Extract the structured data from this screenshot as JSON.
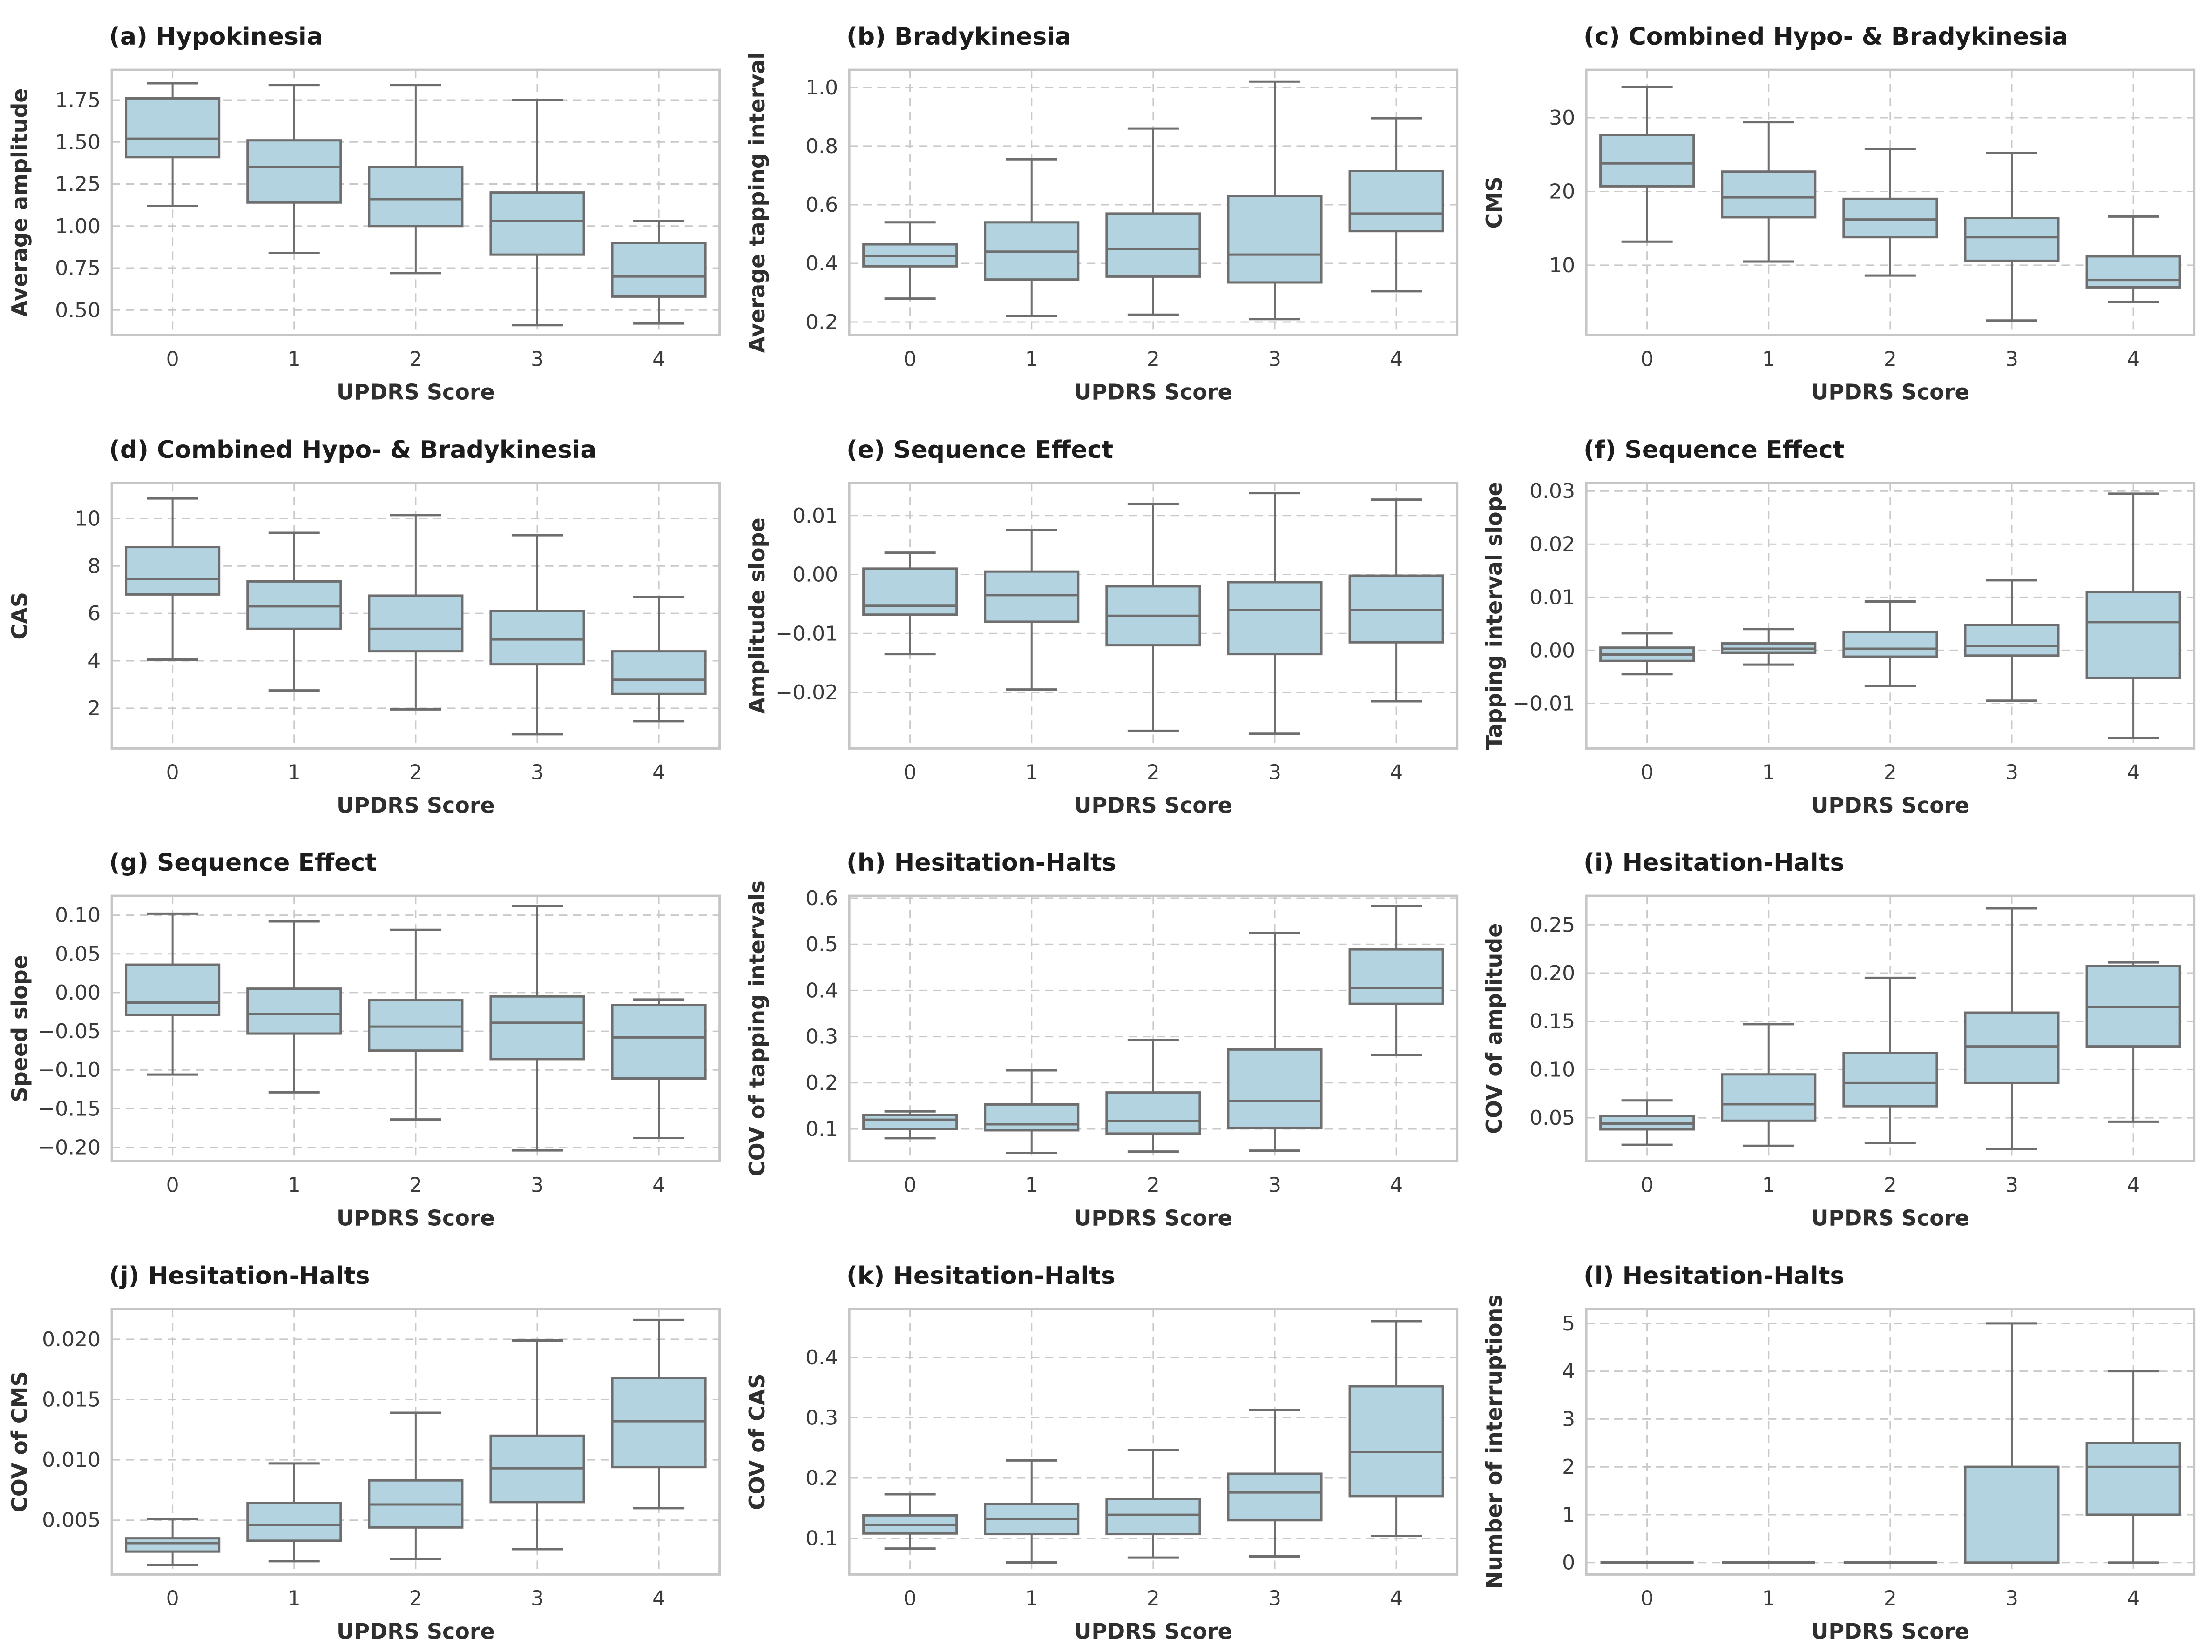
{
  "figure": {
    "background": "#ffffff",
    "shared_xlabel": "UPDRS Score",
    "categories": [
      "0",
      "1",
      "2",
      "3",
      "4"
    ],
    "style": {
      "box_fill": "#b4d3e0",
      "box_edge": "#6e6e6e",
      "grid_color": "#c9c9c9",
      "frame_color": "#c6c6c6",
      "tick_text_color": "#3b3b3b",
      "label_text_color": "#2f2f2f",
      "title_text_color": "#1c1c1c"
    }
  },
  "chart_data": [
    {
      "type": "box",
      "panel_label": "(a)",
      "title": "(a) Hypokinesia",
      "ylabel": "Average amplitude",
      "xlabel": "UPDRS Score",
      "categories": [
        "0",
        "1",
        "2",
        "3",
        "4"
      ],
      "ylim": [
        0.35,
        1.93
      ],
      "ytick_values": [
        0.5,
        0.75,
        1.0,
        1.25,
        1.5,
        1.75
      ],
      "ytick_labels": [
        "0.50",
        "0.75",
        "1.00",
        "1.25",
        "1.50",
        "1.75"
      ],
      "boxes": [
        {
          "whislo": 1.12,
          "q1": 1.41,
          "med": 1.52,
          "q3": 1.76,
          "whishi": 1.85
        },
        {
          "whislo": 0.84,
          "q1": 1.14,
          "med": 1.35,
          "q3": 1.51,
          "whishi": 1.84
        },
        {
          "whislo": 0.72,
          "q1": 1.0,
          "med": 1.16,
          "q3": 1.35,
          "whishi": 1.84
        },
        {
          "whislo": 0.41,
          "q1": 0.83,
          "med": 1.03,
          "q3": 1.2,
          "whishi": 1.75
        },
        {
          "whislo": 0.42,
          "q1": 0.58,
          "med": 0.7,
          "q3": 0.9,
          "whishi": 1.03
        }
      ]
    },
    {
      "type": "box",
      "panel_label": "(b)",
      "title": "(b) Bradykinesia",
      "ylabel": "Average tapping interval",
      "xlabel": "UPDRS Score",
      "categories": [
        "0",
        "1",
        "2",
        "3",
        "4"
      ],
      "ylim": [
        0.155,
        1.06
      ],
      "ytick_values": [
        0.2,
        0.4,
        0.6,
        0.8,
        1.0
      ],
      "ytick_labels": [
        "0.2",
        "0.4",
        "0.6",
        "0.8",
        "1.0"
      ],
      "boxes": [
        {
          "whislo": 0.28,
          "q1": 0.39,
          "med": 0.425,
          "q3": 0.465,
          "whishi": 0.54
        },
        {
          "whislo": 0.22,
          "q1": 0.345,
          "med": 0.44,
          "q3": 0.54,
          "whishi": 0.755
        },
        {
          "whislo": 0.225,
          "q1": 0.355,
          "med": 0.45,
          "q3": 0.57,
          "whishi": 0.86
        },
        {
          "whislo": 0.21,
          "q1": 0.335,
          "med": 0.43,
          "q3": 0.63,
          "whishi": 1.02
        },
        {
          "whislo": 0.305,
          "q1": 0.51,
          "med": 0.57,
          "q3": 0.715,
          "whishi": 0.895
        }
      ]
    },
    {
      "type": "box",
      "panel_label": "(c)",
      "title": "(c) Combined Hypo- & Bradykinesia",
      "ylabel": "CMS",
      "xlabel": "UPDRS Score",
      "categories": [
        "0",
        "1",
        "2",
        "3",
        "4"
      ],
      "ylim": [
        0.5,
        36.5
      ],
      "ytick_values": [
        10,
        20,
        30
      ],
      "ytick_labels": [
        "10",
        "20",
        "30"
      ],
      "boxes": [
        {
          "whislo": 13.2,
          "q1": 20.7,
          "med": 23.8,
          "q3": 27.7,
          "whishi": 34.2
        },
        {
          "whislo": 10.5,
          "q1": 16.5,
          "med": 19.2,
          "q3": 22.7,
          "whishi": 29.4
        },
        {
          "whislo": 8.6,
          "q1": 13.8,
          "med": 16.2,
          "q3": 19.0,
          "whishi": 25.8
        },
        {
          "whislo": 2.5,
          "q1": 10.6,
          "med": 13.8,
          "q3": 16.4,
          "whishi": 25.2
        },
        {
          "whislo": 5.0,
          "q1": 7.0,
          "med": 8.0,
          "q3": 11.2,
          "whishi": 16.6
        }
      ]
    },
    {
      "type": "box",
      "panel_label": "(d)",
      "title": "(d) Combined Hypo- & Bradykinesia",
      "ylabel": "CAS",
      "xlabel": "UPDRS Score",
      "categories": [
        "0",
        "1",
        "2",
        "3",
        "4"
      ],
      "ylim": [
        0.3,
        11.5
      ],
      "ytick_values": [
        2,
        4,
        6,
        8,
        10
      ],
      "ytick_labels": [
        "2",
        "4",
        "6",
        "8",
        "10"
      ],
      "boxes": [
        {
          "whislo": 4.05,
          "q1": 6.8,
          "med": 7.45,
          "q3": 8.8,
          "whishi": 10.85
        },
        {
          "whislo": 2.75,
          "q1": 5.35,
          "med": 6.3,
          "q3": 7.35,
          "whishi": 9.4
        },
        {
          "whislo": 1.95,
          "q1": 4.4,
          "med": 5.35,
          "q3": 6.75,
          "whishi": 10.15
        },
        {
          "whislo": 0.9,
          "q1": 3.85,
          "med": 4.9,
          "q3": 6.1,
          "whishi": 9.3
        },
        {
          "whislo": 1.45,
          "q1": 2.6,
          "med": 3.2,
          "q3": 4.4,
          "whishi": 6.7
        }
      ]
    },
    {
      "type": "box",
      "panel_label": "(e)",
      "title": "(e) Sequence Effect",
      "ylabel": "Amplitude slope",
      "xlabel": "UPDRS Score",
      "categories": [
        "0",
        "1",
        "2",
        "3",
        "4"
      ],
      "ylim": [
        -0.0295,
        0.0155
      ],
      "ytick_values": [
        -0.02,
        -0.01,
        0.0,
        0.01
      ],
      "ytick_labels": [
        "−0.02",
        "−0.01",
        "0.00",
        "0.01"
      ],
      "boxes": [
        {
          "whislo": -0.0135,
          "q1": -0.0068,
          "med": -0.0053,
          "q3": 0.001,
          "whishi": 0.0037
        },
        {
          "whislo": -0.0195,
          "q1": -0.008,
          "med": -0.0035,
          "q3": 0.0005,
          "whishi": 0.0075
        },
        {
          "whislo": -0.0265,
          "q1": -0.012,
          "med": -0.007,
          "q3": -0.002,
          "whishi": 0.012
        },
        {
          "whislo": -0.027,
          "q1": -0.0135,
          "med": -0.006,
          "q3": -0.0013,
          "whishi": 0.0138
        },
        {
          "whislo": -0.0215,
          "q1": -0.0115,
          "med": -0.006,
          "q3": -0.0002,
          "whishi": 0.0127
        }
      ]
    },
    {
      "type": "box",
      "panel_label": "(f)",
      "title": "(f) Sequence Effect",
      "ylabel": "Tapping interval slope",
      "xlabel": "UPDRS Score",
      "categories": [
        "0",
        "1",
        "2",
        "3",
        "4"
      ],
      "ylim": [
        -0.0185,
        0.0315
      ],
      "ytick_values": [
        -0.01,
        0.0,
        0.01,
        0.02,
        0.03
      ],
      "ytick_labels": [
        "−0.01",
        "0.00",
        "0.01",
        "0.02",
        "0.03"
      ],
      "boxes": [
        {
          "whislo": -0.0045,
          "q1": -0.002,
          "med": -0.0008,
          "q3": 0.0005,
          "whishi": 0.0032
        },
        {
          "whislo": -0.0027,
          "q1": -0.0005,
          "med": 0.0003,
          "q3": 0.0013,
          "whishi": 0.004
        },
        {
          "whislo": -0.0067,
          "q1": -0.0012,
          "med": 0.0003,
          "q3": 0.0035,
          "whishi": 0.0092
        },
        {
          "whislo": -0.0095,
          "q1": -0.001,
          "med": 0.0008,
          "q3": 0.0048,
          "whishi": 0.0132
        },
        {
          "whislo": -0.0165,
          "q1": -0.0052,
          "med": 0.0053,
          "q3": 0.011,
          "whishi": 0.0295
        }
      ]
    },
    {
      "type": "box",
      "panel_label": "(g)",
      "title": "(g) Sequence Effect",
      "ylabel": "Speed slope",
      "xlabel": "UPDRS Score",
      "categories": [
        "0",
        "1",
        "2",
        "3",
        "4"
      ],
      "ylim": [
        -0.218,
        0.125
      ],
      "ytick_values": [
        -0.2,
        -0.15,
        -0.1,
        -0.05,
        0.0,
        0.05,
        0.1
      ],
      "ytick_labels": [
        "−0.20",
        "−0.15",
        "−0.10",
        "−0.05",
        "0.00",
        "0.05",
        "0.10"
      ],
      "boxes": [
        {
          "whislo": -0.106,
          "q1": -0.029,
          "med": -0.013,
          "q3": 0.036,
          "whishi": 0.102
        },
        {
          "whislo": -0.129,
          "q1": -0.053,
          "med": -0.028,
          "q3": 0.005,
          "whishi": 0.092
        },
        {
          "whislo": -0.164,
          "q1": -0.075,
          "med": -0.044,
          "q3": -0.01,
          "whishi": 0.081
        },
        {
          "whislo": -0.204,
          "q1": -0.086,
          "med": -0.039,
          "q3": -0.005,
          "whishi": 0.112
        },
        {
          "whislo": -0.188,
          "q1": -0.111,
          "med": -0.058,
          "q3": -0.016,
          "whishi": -0.009
        }
      ]
    },
    {
      "type": "box",
      "panel_label": "(h)",
      "title": "(h) Hesitation-Halts",
      "ylabel": "COV of tapping intervals",
      "xlabel": "UPDRS Score",
      "categories": [
        "0",
        "1",
        "2",
        "3",
        "4"
      ],
      "ylim": [
        0.03,
        0.605
      ],
      "ytick_values": [
        0.1,
        0.2,
        0.3,
        0.4,
        0.5,
        0.6
      ],
      "ytick_labels": [
        "0.1",
        "0.2",
        "0.3",
        "0.4",
        "0.5",
        "0.6"
      ],
      "boxes": [
        {
          "whislo": 0.08,
          "q1": 0.1,
          "med": 0.12,
          "q3": 0.13,
          "whishi": 0.138
        },
        {
          "whislo": 0.048,
          "q1": 0.097,
          "med": 0.11,
          "q3": 0.153,
          "whishi": 0.227
        },
        {
          "whislo": 0.051,
          "q1": 0.09,
          "med": 0.117,
          "q3": 0.179,
          "whishi": 0.293
        },
        {
          "whislo": 0.053,
          "q1": 0.102,
          "med": 0.16,
          "q3": 0.272,
          "whishi": 0.524
        },
        {
          "whislo": 0.26,
          "q1": 0.371,
          "med": 0.405,
          "q3": 0.489,
          "whishi": 0.583
        }
      ]
    },
    {
      "type": "box",
      "panel_label": "(i)",
      "title": "(i) Hesitation-Halts",
      "ylabel": "COV of amplitude",
      "xlabel": "UPDRS Score",
      "categories": [
        "0",
        "1",
        "2",
        "3",
        "4"
      ],
      "ylim": [
        0.005,
        0.28
      ],
      "ytick_values": [
        0.05,
        0.1,
        0.15,
        0.2,
        0.25
      ],
      "ytick_labels": [
        "0.05",
        "0.10",
        "0.15",
        "0.20",
        "0.25"
      ],
      "boxes": [
        {
          "whislo": 0.022,
          "q1": 0.038,
          "med": 0.044,
          "q3": 0.052,
          "whishi": 0.068
        },
        {
          "whislo": 0.021,
          "q1": 0.047,
          "med": 0.064,
          "q3": 0.095,
          "whishi": 0.147
        },
        {
          "whislo": 0.024,
          "q1": 0.062,
          "med": 0.086,
          "q3": 0.117,
          "whishi": 0.195
        },
        {
          "whislo": 0.018,
          "q1": 0.086,
          "med": 0.124,
          "q3": 0.159,
          "whishi": 0.267
        },
        {
          "whislo": 0.046,
          "q1": 0.124,
          "med": 0.165,
          "q3": 0.207,
          "whishi": 0.211
        }
      ]
    },
    {
      "type": "box",
      "panel_label": "(j)",
      "title": "(j) Hesitation-Halts",
      "ylabel": "COV of CMS",
      "xlabel": "UPDRS Score",
      "categories": [
        "0",
        "1",
        "2",
        "3",
        "4"
      ],
      "ylim": [
        0.0005,
        0.0225
      ],
      "ytick_values": [
        0.005,
        0.01,
        0.015,
        0.02
      ],
      "ytick_labels": [
        "0.005",
        "0.010",
        "0.015",
        "0.020"
      ],
      "boxes": [
        {
          "whislo": 0.0013,
          "q1": 0.0024,
          "med": 0.0031,
          "q3": 0.0035,
          "whishi": 0.0051
        },
        {
          "whislo": 0.0016,
          "q1": 0.0033,
          "med": 0.0046,
          "q3": 0.0064,
          "whishi": 0.0097
        },
        {
          "whislo": 0.0018,
          "q1": 0.0044,
          "med": 0.0063,
          "q3": 0.0083,
          "whishi": 0.0139
        },
        {
          "whislo": 0.0026,
          "q1": 0.0065,
          "med": 0.0093,
          "q3": 0.012,
          "whishi": 0.0199
        },
        {
          "whislo": 0.006,
          "q1": 0.0094,
          "med": 0.0132,
          "q3": 0.0168,
          "whishi": 0.0216
        }
      ]
    },
    {
      "type": "box",
      "panel_label": "(k)",
      "title": "(k) Hesitation-Halts",
      "ylabel": "COV of CAS",
      "xlabel": "UPDRS Score",
      "categories": [
        "0",
        "1",
        "2",
        "3",
        "4"
      ],
      "ylim": [
        0.04,
        0.48
      ],
      "ytick_values": [
        0.1,
        0.2,
        0.3,
        0.4
      ],
      "ytick_labels": [
        "0.1",
        "0.2",
        "0.3",
        "0.4"
      ],
      "boxes": [
        {
          "whislo": 0.083,
          "q1": 0.108,
          "med": 0.122,
          "q3": 0.138,
          "whishi": 0.173
        },
        {
          "whislo": 0.06,
          "q1": 0.107,
          "med": 0.132,
          "q3": 0.157,
          "whishi": 0.229
        },
        {
          "whislo": 0.068,
          "q1": 0.107,
          "med": 0.139,
          "q3": 0.165,
          "whishi": 0.246
        },
        {
          "whislo": 0.07,
          "q1": 0.13,
          "med": 0.176,
          "q3": 0.207,
          "whishi": 0.313
        },
        {
          "whislo": 0.104,
          "q1": 0.17,
          "med": 0.243,
          "q3": 0.352,
          "whishi": 0.46
        }
      ]
    },
    {
      "type": "box",
      "panel_label": "(l)",
      "title": "(l) Hesitation-Halts",
      "ylabel": "Number of interruptions",
      "xlabel": "UPDRS Score",
      "categories": [
        "0",
        "1",
        "2",
        "3",
        "4"
      ],
      "ylim": [
        -0.25,
        5.3
      ],
      "ytick_values": [
        0,
        1,
        2,
        3,
        4,
        5
      ],
      "ytick_labels": [
        "0",
        "1",
        "2",
        "3",
        "4",
        "5"
      ],
      "boxes": [
        {
          "whislo": 0,
          "q1": 0,
          "med": 0,
          "q3": 0,
          "whishi": 0
        },
        {
          "whislo": 0,
          "q1": 0,
          "med": 0,
          "q3": 0,
          "whishi": 0
        },
        {
          "whislo": 0,
          "q1": 0,
          "med": 0,
          "q3": 0,
          "whishi": 0
        },
        {
          "whislo": 0,
          "q1": 0,
          "med": 2,
          "q3": 2,
          "whishi": 5
        },
        {
          "whislo": 0,
          "q1": 1,
          "med": 2,
          "q3": 2.5,
          "whishi": 4
        }
      ]
    }
  ]
}
